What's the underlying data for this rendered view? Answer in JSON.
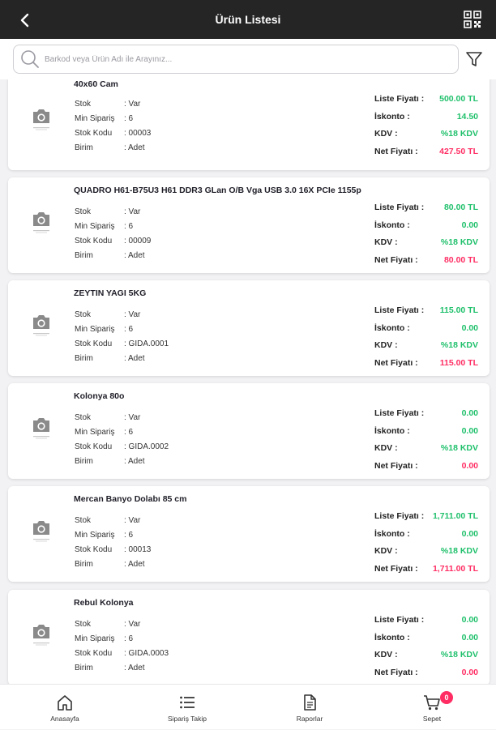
{
  "header": {
    "title": "Ürün Listesi"
  },
  "search": {
    "placeholder": "Barkod veya Ürün Adı ile Arayınız..."
  },
  "labels": {
    "stok": "Stok",
    "min": "Min Sipariş",
    "kod": "Stok Kodu",
    "birim": "Birim",
    "liste": "Liste Fiyatı :",
    "iskonto": "İskonto :",
    "kdv": "KDV :",
    "net": "Net Fiyatı :"
  },
  "products": [
    {
      "name": "40x60 Cam",
      "stok": ": Var",
      "min": ": 6",
      "kod": ": 00003",
      "birim": ": Adet",
      "liste": "500.00 TL",
      "iskonto": "14.50",
      "kdv": "%18 KDV",
      "net": "427.50 TL"
    },
    {
      "name": "QUADRO H61-B75U3 H61 DDR3 GLan O/B Vga USB 3.0 16X PCIe 1155p",
      "stok": ": Var",
      "min": ": 6",
      "kod": ": 00009",
      "birim": ": Adet",
      "liste": "80.00 TL",
      "iskonto": "0.00",
      "kdv": "%18 KDV",
      "net": "80.00 TL"
    },
    {
      "name": "ZEYTIN YAGI 5KG",
      "stok": ": Var",
      "min": ": 6",
      "kod": ": GIDA.0001",
      "birim": ": Adet",
      "liste": "115.00 TL",
      "iskonto": "0.00",
      "kdv": "%18 KDV",
      "net": "115.00 TL"
    },
    {
      "name": "Kolonya 80o",
      "stok": ": Var",
      "min": ": 6",
      "kod": ": GIDA.0002",
      "birim": ": Adet",
      "liste": "0.00",
      "iskonto": "0.00",
      "kdv": "%18 KDV",
      "net": "0.00"
    },
    {
      "name": "Mercan Banyo Dolabı 85 cm",
      "stok": ": Var",
      "min": ": 6",
      "kod": ": 00013",
      "birim": ": Adet",
      "liste": "1,711.00 TL",
      "iskonto": "0.00",
      "kdv": "%18 KDV",
      "net": "1,711.00 TL"
    },
    {
      "name": "Rebul Kolonya",
      "stok": ": Var",
      "min": ": 6",
      "kod": ": GIDA.0003",
      "birim": ": Adet",
      "liste": "0.00",
      "iskonto": "0.00",
      "kdv": "%18 KDV",
      "net": "0.00"
    }
  ],
  "nav": {
    "home": "Anasayfa",
    "orders": "Sipariş Takip",
    "reports": "Raporlar",
    "cart": "Sepet",
    "cart_count": "0"
  },
  "colors": {
    "header_bg": "#252525",
    "green": "#1fc06b",
    "red": "#ff2d63"
  },
  "icons": {
    "back": "back-arrow-icon",
    "qr": "qr-code-icon",
    "search": "search-icon",
    "filter": "filter-icon",
    "camera": "camera-icon",
    "home": "home-icon",
    "list": "list-icon",
    "report": "document-icon",
    "cart": "cart-icon"
  }
}
